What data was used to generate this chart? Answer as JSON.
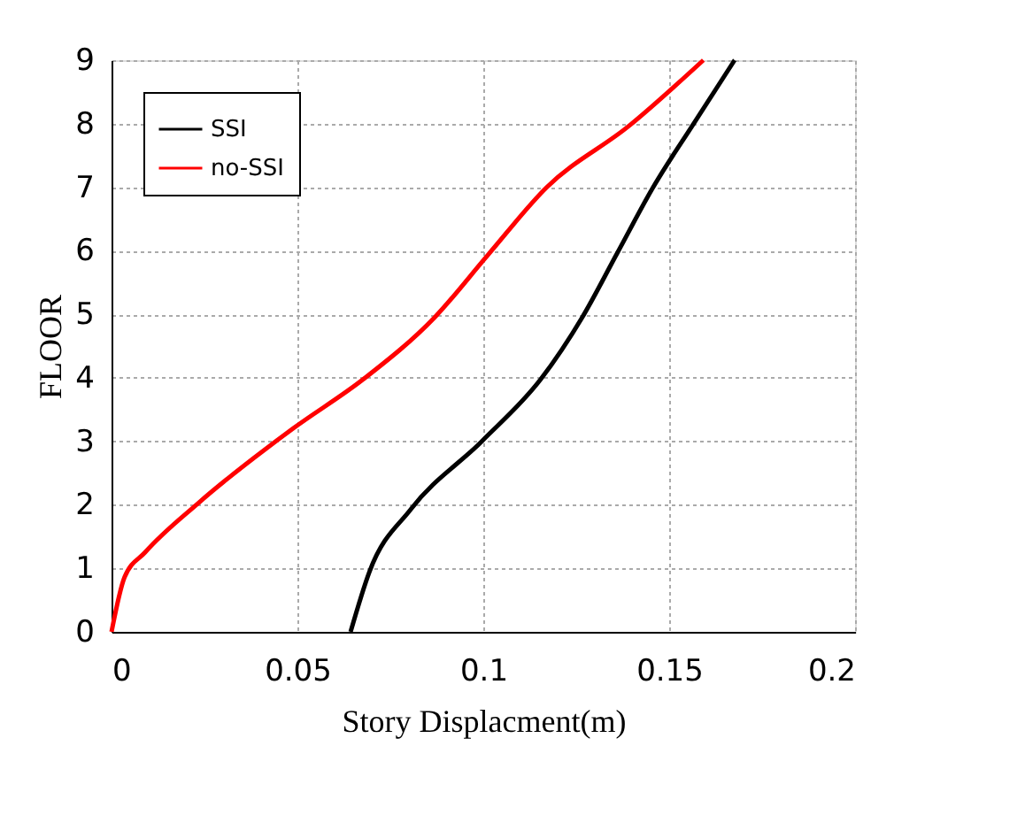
{
  "chart_data": {
    "type": "line",
    "xlabel": "Story Displacment(m)",
    "ylabel": "FLOOR",
    "xlim": [
      0,
      0.2
    ],
    "xticks": [
      0,
      0.05,
      0.1,
      0.15,
      0.2
    ],
    "ylim": [
      0,
      9
    ],
    "yticks": [
      0,
      1,
      2,
      3,
      4,
      5,
      6,
      7,
      8,
      9
    ],
    "grid": true,
    "legend": "top left",
    "marker": "none",
    "line_style": "solid",
    "series": [
      {
        "name": "SSI",
        "color": "#000000",
        "x": [
          0.0643,
          0.0694,
          0.0805,
          0.0996,
          0.1155,
          0.1266,
          0.1361,
          0.1457,
          0.1568,
          0.1676
        ],
        "values": [
          0,
          0.95,
          1.93,
          3.0,
          3.98,
          4.95,
          5.97,
          7.0,
          8.02,
          9
        ]
      },
      {
        "name": "no-SSI",
        "color": "#ff0000",
        "x": [
          0,
          0.0035,
          0.009,
          0.0234,
          0.0488,
          0.0678,
          0.0869,
          0.1012,
          0.1171,
          0.1393,
          0.1592
        ],
        "values": [
          0,
          0.86,
          1.25,
          2.03,
          3.2,
          3.98,
          4.95,
          5.93,
          7.0,
          7.97,
          9
        ]
      }
    ]
  }
}
